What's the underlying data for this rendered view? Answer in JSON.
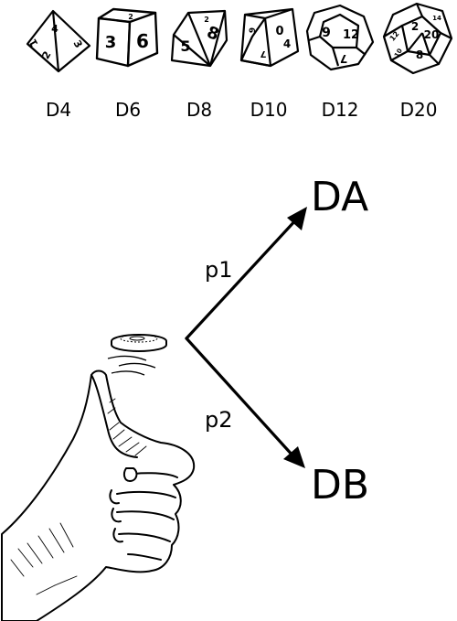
{
  "dice": [
    {
      "label": "D4",
      "faces": [
        "4",
        "3",
        "2",
        "1"
      ]
    },
    {
      "label": "D6",
      "faces": [
        "3",
        "6",
        "2"
      ]
    },
    {
      "label": "D8",
      "faces": [
        "5",
        "8",
        "2"
      ]
    },
    {
      "label": "D10",
      "faces": [
        "0",
        "4",
        "7",
        "9"
      ]
    },
    {
      "label": "D12",
      "faces": [
        "9",
        "12",
        "7"
      ]
    },
    {
      "label": "D20",
      "faces": [
        "2",
        "20",
        "8",
        "12",
        "14",
        "10"
      ]
    }
  ],
  "outcomes": {
    "upper": {
      "label": "DA",
      "probability": "p1"
    },
    "lower": {
      "label": "DB",
      "probability": "p2"
    }
  }
}
